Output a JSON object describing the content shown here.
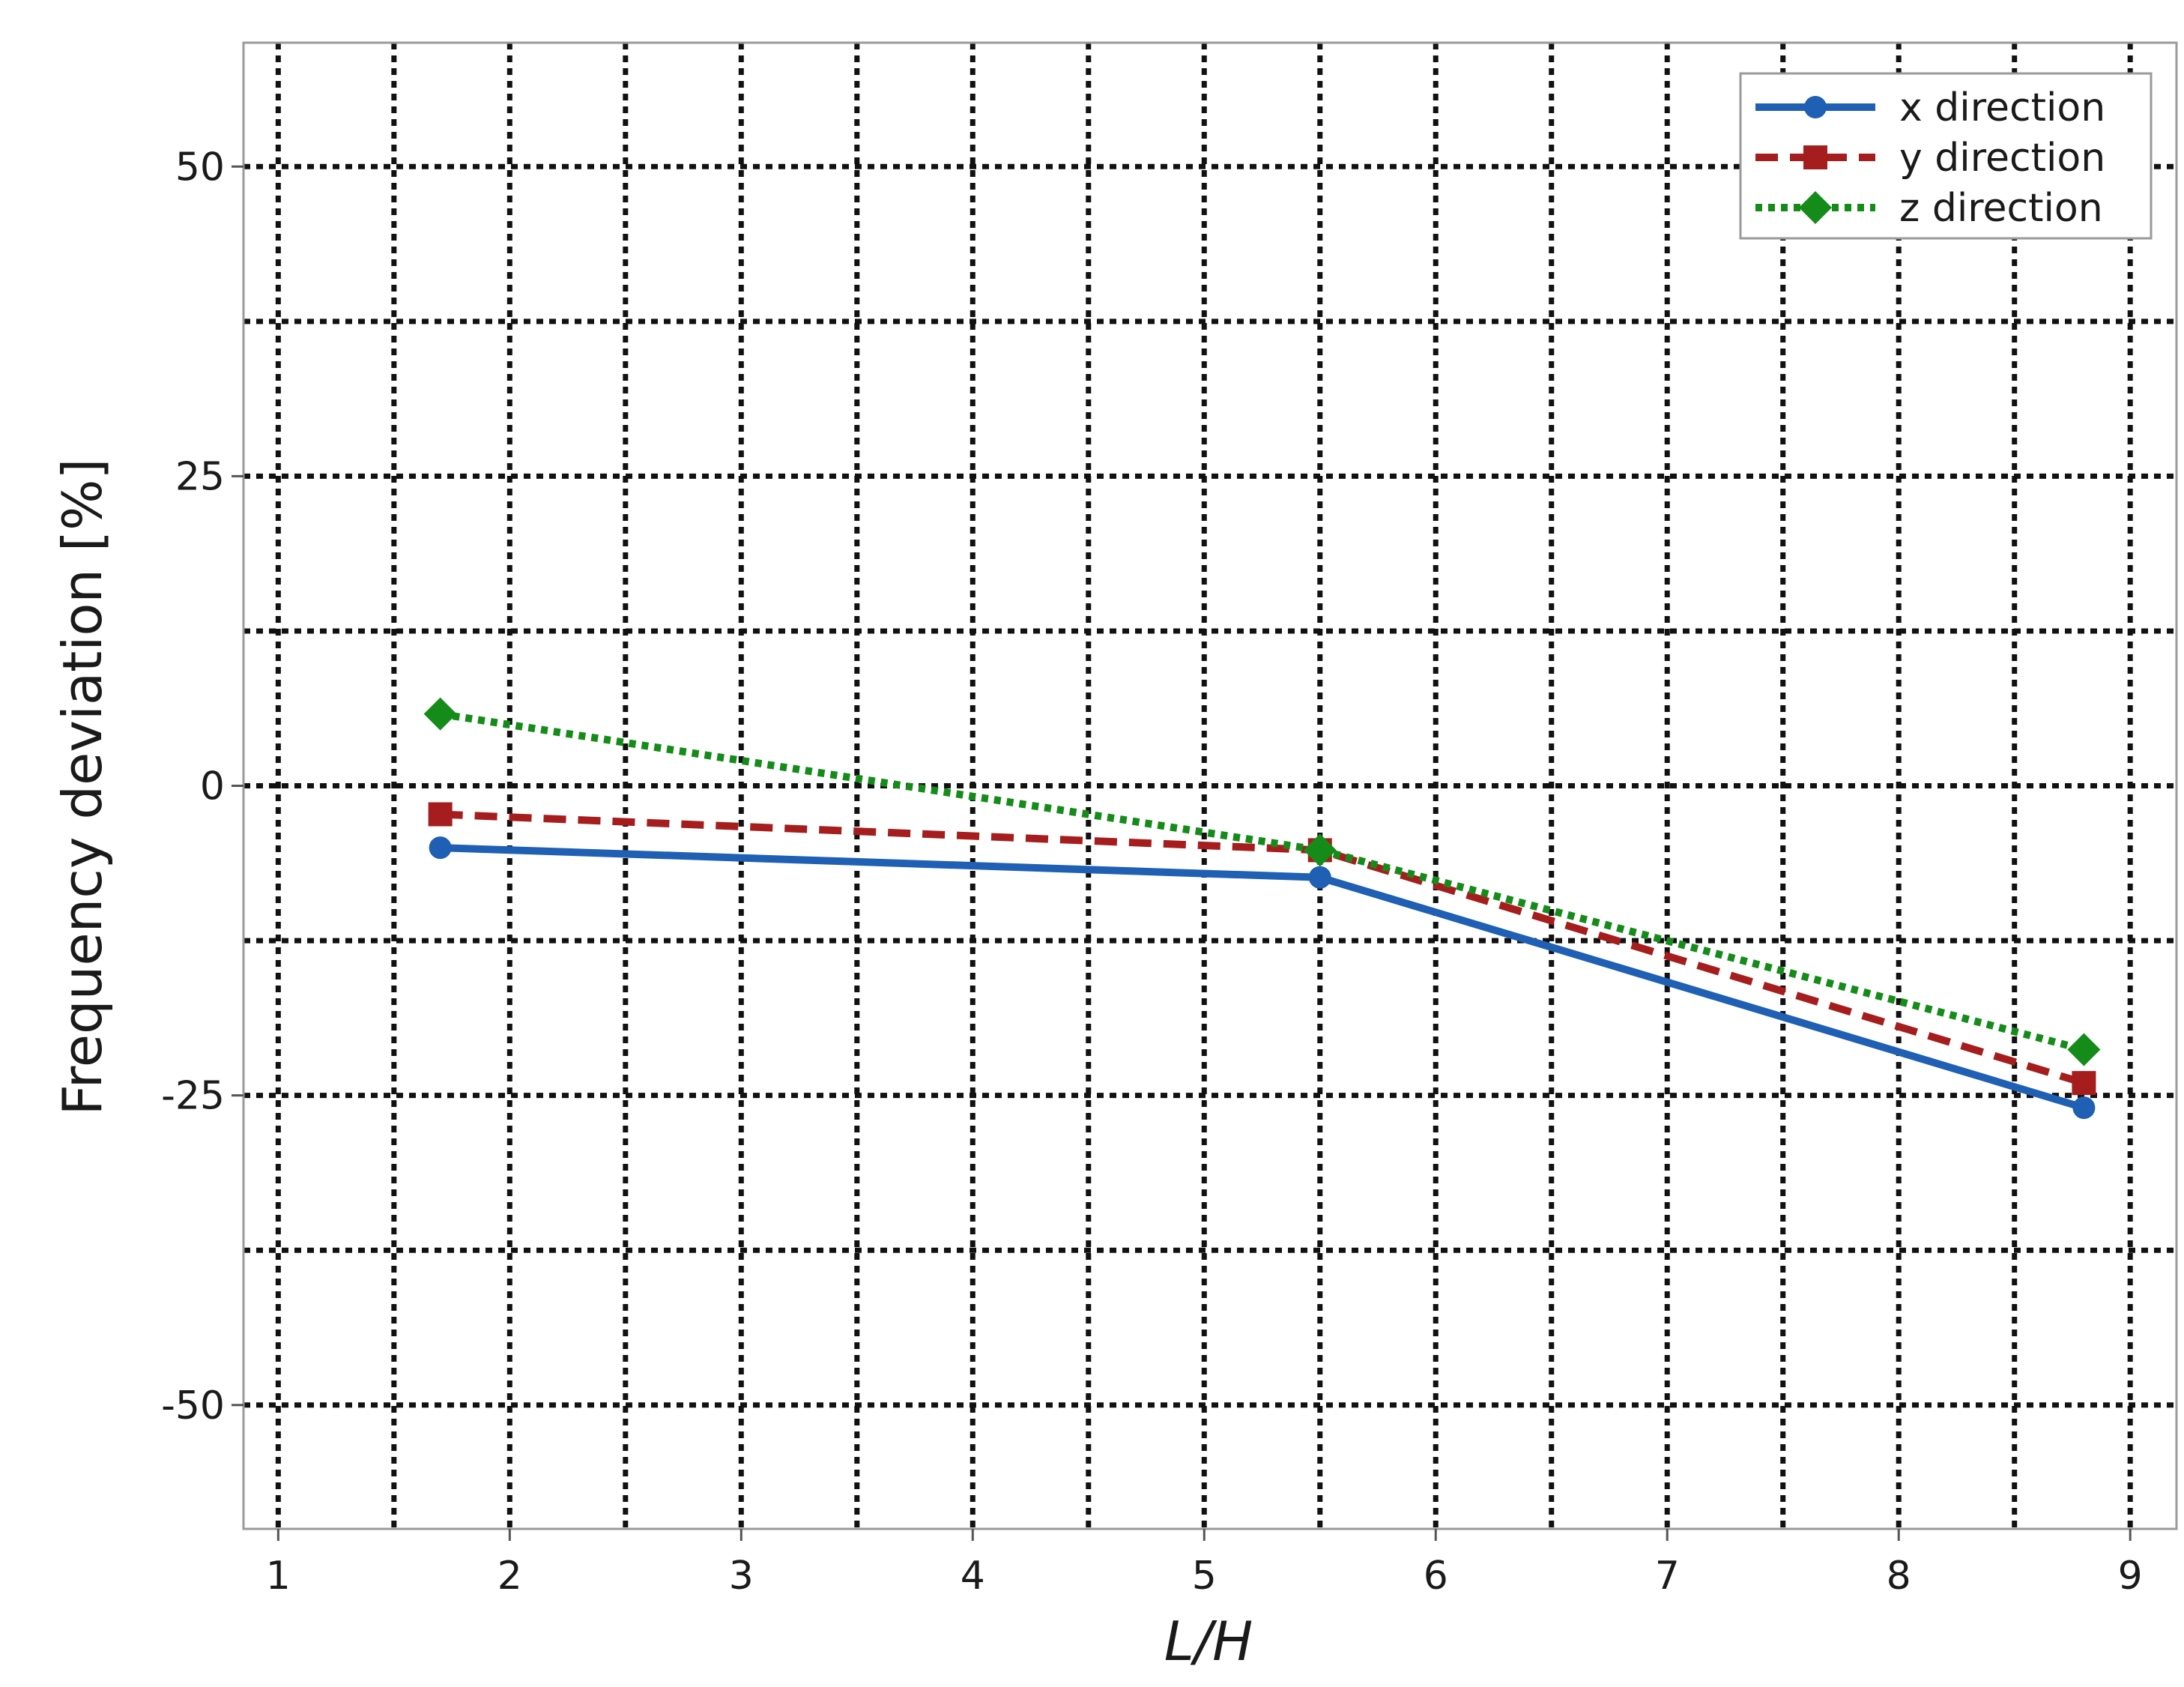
{
  "chart_data": {
    "type": "line",
    "xlabel": "L/H",
    "ylabel": "Frequency deviation [%]",
    "xlim": [
      0.85,
      9.2
    ],
    "ylim": [
      -60,
      60
    ],
    "x_ticks": [
      1,
      2,
      3,
      4,
      5,
      6,
      7,
      8,
      9
    ],
    "y_ticks": [
      -50,
      -25,
      0,
      25,
      50
    ],
    "grid": true,
    "grid_style": "dotted",
    "x_grid": [
      1,
      1.5,
      2,
      2.5,
      3,
      3.5,
      4,
      4.5,
      5,
      5.5,
      6,
      6.5,
      7,
      7.5,
      8,
      8.5,
      9
    ],
    "y_grid": [
      -50,
      -37.5,
      -25,
      -12.5,
      0,
      12.5,
      25,
      37.5,
      50
    ],
    "legend_position": "top-right",
    "series": [
      {
        "name": "x direction",
        "color": "#1f5fb4",
        "line": "solid",
        "marker": "circle",
        "x": [
          1.7,
          5.5,
          8.8
        ],
        "y": [
          -5,
          -7.4,
          -26
        ]
      },
      {
        "name": "y direction",
        "color": "#a51d1d",
        "line": "dashed",
        "marker": "square",
        "x": [
          1.7,
          5.5,
          8.8
        ],
        "y": [
          -2.3,
          -5.2,
          -24
        ]
      },
      {
        "name": "z direction",
        "color": "#158c1a",
        "line": "dotted",
        "marker": "diamond",
        "x": [
          1.7,
          5.5,
          8.8
        ],
        "y": [
          5.8,
          -5.2,
          -21.3
        ]
      }
    ]
  }
}
